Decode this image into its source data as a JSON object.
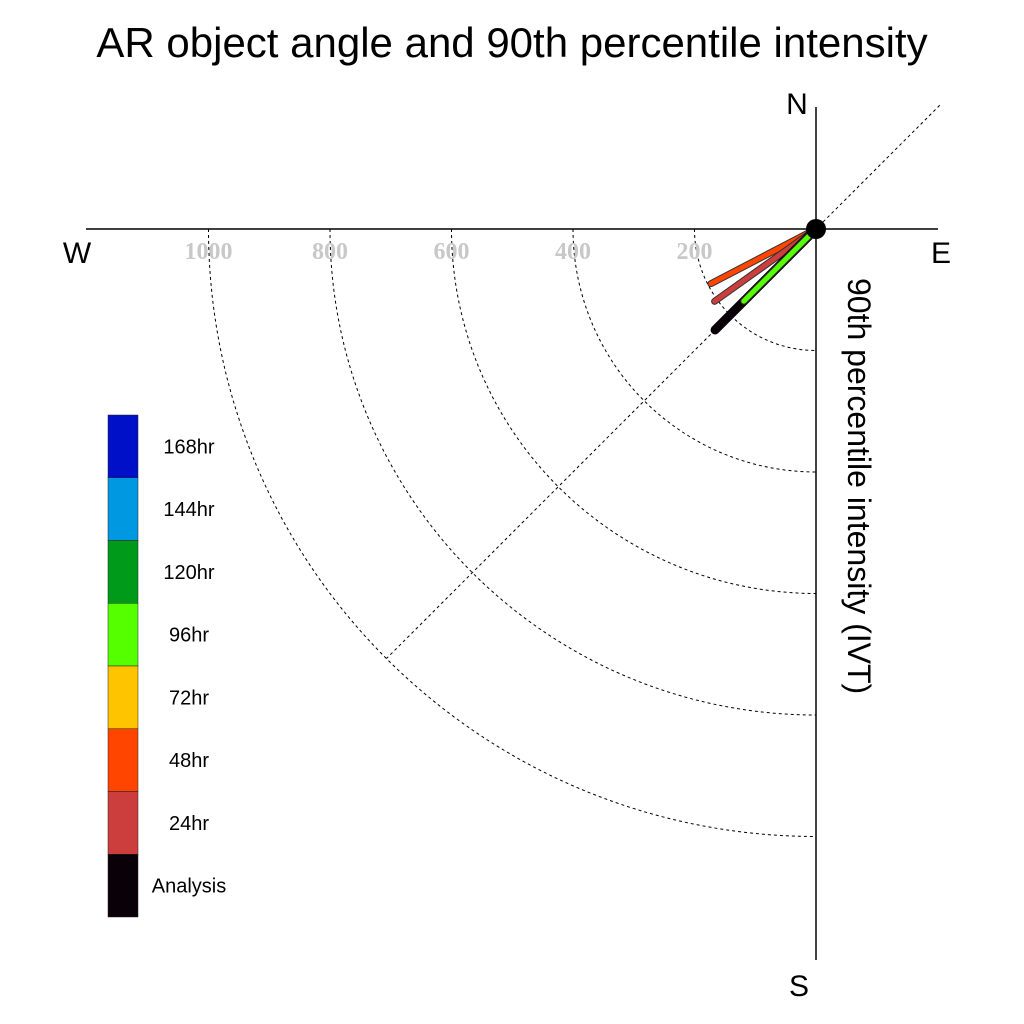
{
  "chart_data": {
    "type": "polar-vector",
    "title": "AR object angle and 90th percentile intensity",
    "ylabel": "90th percentile intensity (IVT)",
    "compass": {
      "north": "N",
      "south": "S",
      "east": "E",
      "west": "W"
    },
    "radial_ticks": [
      200,
      400,
      600,
      800,
      1000
    ],
    "radial_tick_labels": [
      "200",
      "400",
      "600",
      "800",
      "1000"
    ],
    "radial_range": [
      0,
      1000
    ],
    "reference_line_angle_deg": 45,
    "grid": "dotted",
    "legend": {
      "placement": "left",
      "entries": [
        {
          "label": "168hr",
          "color": "#0010c8"
        },
        {
          "label": "144hr",
          "color": "#0098e0"
        },
        {
          "label": "120hr",
          "color": "#009a1a"
        },
        {
          "label": "96hr",
          "color": "#55ff00"
        },
        {
          "label": "72hr",
          "color": "#ffc400"
        },
        {
          "label": "48hr",
          "color": "#ff4500"
        },
        {
          "label": "24hr",
          "color": "#cc3d3d"
        },
        {
          "label": "Analysis",
          "color": "#0a0008"
        }
      ]
    },
    "series": [
      {
        "name": "48hr",
        "color": "#ff4500",
        "direction_deg": 242.5,
        "intensity": 195
      },
      {
        "name": "24hr",
        "color": "#cc3d3d",
        "direction_deg": 234.5,
        "intensity": 205
      },
      {
        "name": "Analysis",
        "color": "#0a0008",
        "direction_deg": 225,
        "intensity": 235
      },
      {
        "name": "96hr",
        "color": "#55ff00",
        "direction_deg": 225,
        "intensity": 168
      }
    ]
  }
}
